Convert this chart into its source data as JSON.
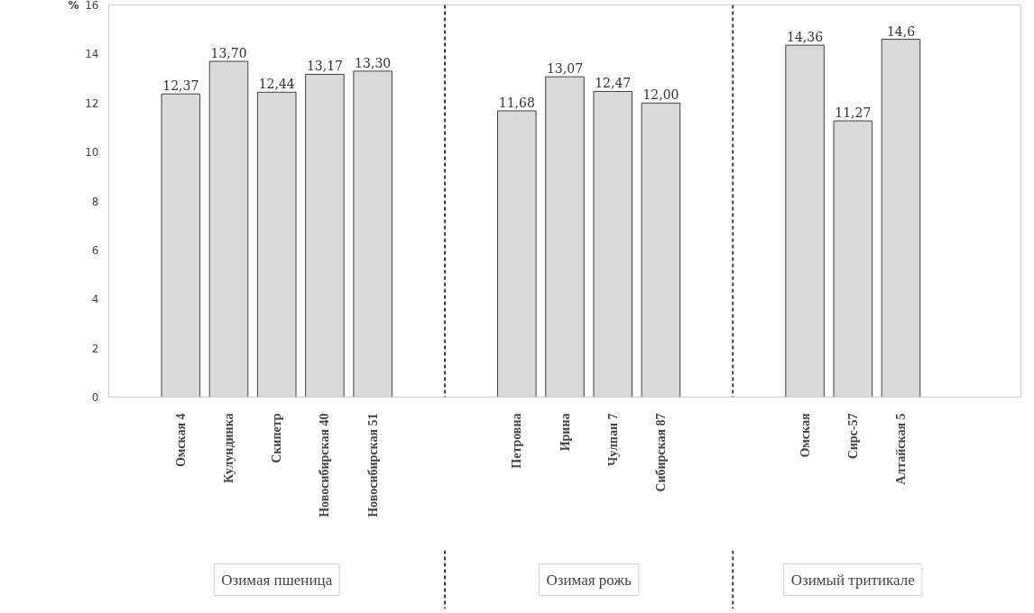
{
  "chart_data": {
    "type": "bar",
    "ylabel": "%",
    "categories": [
      null,
      "Омская 4",
      "Кулундинка",
      "Скипетр",
      "Новосибирская 40",
      "Новосибирская 51",
      null,
      null,
      "Петровна",
      "Ирина",
      "Чулпан 7",
      "Сибирская 87",
      null,
      null,
      "Омская",
      "Сирс-57",
      "Алтайская 5",
      null,
      null
    ],
    "values": [
      null,
      12.37,
      13.7,
      12.44,
      13.17,
      13.3,
      null,
      null,
      11.68,
      13.07,
      12.47,
      12.0,
      null,
      null,
      14.36,
      11.27,
      14.6,
      null,
      null
    ],
    "value_labels": [
      null,
      "12,37",
      "13,70",
      "12,44",
      "13,17",
      "13,30",
      null,
      null,
      "11,68",
      "13,07",
      "12,47",
      "12,00",
      null,
      null,
      "14,36",
      "11,27",
      "14,6",
      null,
      null
    ],
    "color": "#d9d9d9",
    "ylim": [
      0,
      16
    ],
    "yticks": [
      0,
      2,
      4,
      6,
      8,
      10,
      12,
      14,
      16
    ],
    "grid": false,
    "annotations": [
      "Озимая пшеница",
      "Озимая рожь",
      "Озимый тритикале"
    ]
  }
}
